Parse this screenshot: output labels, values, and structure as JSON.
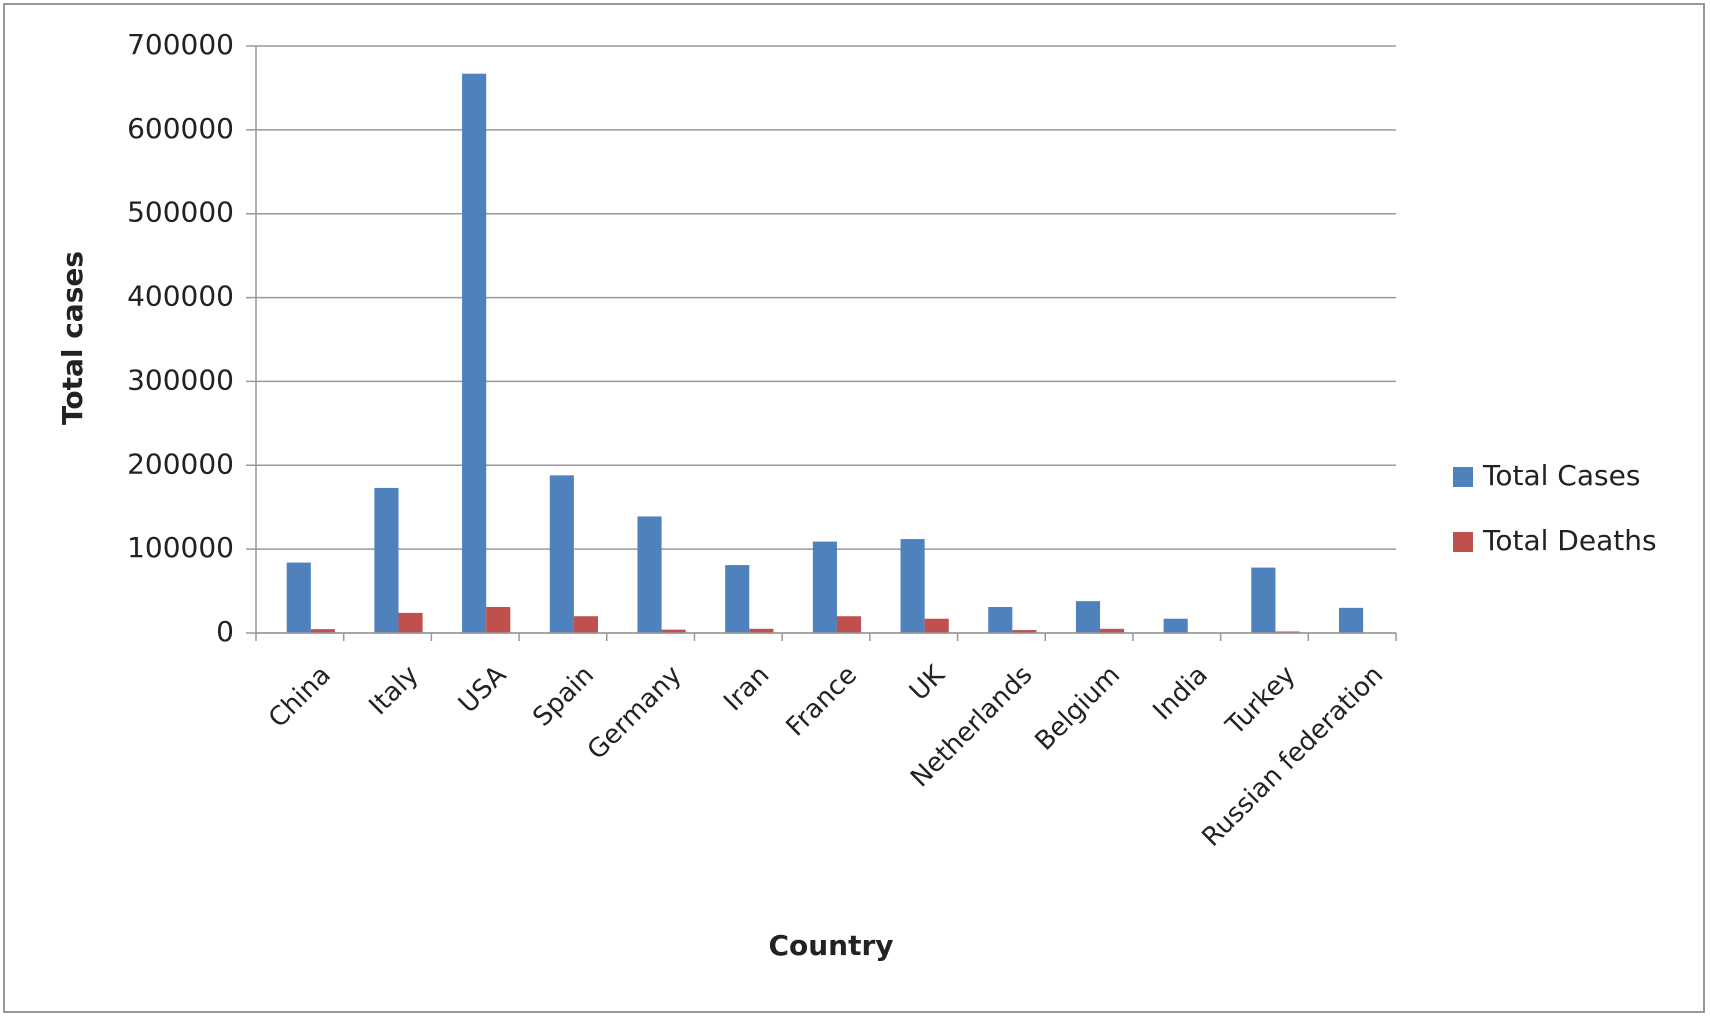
{
  "chart_data": {
    "type": "bar",
    "x_label": "Country",
    "y_label": "Total cases",
    "categories": [
      "China",
      "Italy",
      "USA",
      "Spain",
      "Germany",
      "Iran",
      "France",
      "UK",
      "Netherlands",
      "Belgium",
      "India",
      "Turkey",
      "Russian federation"
    ],
    "series": [
      {
        "name": "Total Cases",
        "color": "#4f81bd",
        "values": [
          84000,
          173000,
          667000,
          188000,
          139000,
          81000,
          109000,
          112000,
          31000,
          38000,
          17000,
          78000,
          30000
        ]
      },
      {
        "name": "Total Deaths",
        "color": "#c0504d",
        "values": [
          4600,
          24000,
          31000,
          20000,
          4000,
          5000,
          20000,
          17000,
          3500,
          5000,
          500,
          1800,
          200
        ]
      }
    ],
    "ylim": [
      0,
      700000
    ],
    "yticks": [
      0,
      100000,
      200000,
      300000,
      400000,
      500000,
      600000,
      700000
    ],
    "grid": true,
    "legend": "right"
  }
}
